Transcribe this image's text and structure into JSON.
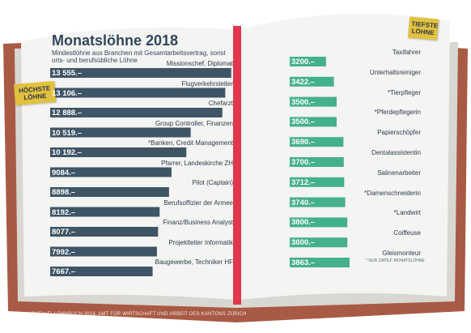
{
  "title": "Monatslöhne 2018",
  "subtitle": "Mindestlöhne aus Branchen mit Gesamtarbeitsvertrag, sonst orts- und berufsübliche Löhne",
  "tag_high": "HÖCHSTE LÖHNE",
  "tag_low": "TIEFSTE LÖHNE",
  "source": "QUELLE: LOHNBUCH 2018, AMT FÜR WIRTSCHAFT UND ARBEIT DES KANTONS ZÜRICH",
  "footnote": "* NUR ZWÖLF MONATSLÖHNE",
  "colors": {
    "book_cover": "#a85a45",
    "page": "#f4f4f2",
    "high_bar": "#3f5566",
    "low_bar": "#45b08c",
    "spine": "#e0364e",
    "tag": "#e2c13e"
  },
  "chart_data": [
    {
      "type": "bar",
      "group": "Höchste Löhne",
      "unit": "CHF",
      "categories": [
        "Missionschef, Diplomat",
        "Flugverkehrsleiter",
        "Chefarzt",
        "Group Controller, Finanzen",
        "*Banken, Credit Management",
        "Pfarrer, Landeskirche ZH",
        "Pilot (Captain)",
        "Berufsoffizier der Armee",
        "Finanz/Business Analyst",
        "Projektleiter Informatik",
        "Baugewerbe, Techniker HF"
      ],
      "values": [
        13555,
        13106,
        12888,
        10519,
        10192,
        9084,
        8898,
        8192,
        8077,
        7992,
        7667
      ],
      "value_labels": [
        "13 555.–",
        "13 106.–",
        "12 888.–",
        "10 519.–",
        "10 192.–",
        "9084.–",
        "8898.–",
        "8192.–",
        "8077.–",
        "7992.–",
        "7667.–"
      ]
    },
    {
      "type": "bar",
      "group": "Tiefste Löhne",
      "unit": "CHF",
      "categories": [
        "Taxifahrer",
        "Unterhaltsreiniger",
        "*Tierpfleger",
        "*Pferdepflegerin",
        "Papierschöpfer",
        "Dentalassistentin",
        "Salinenarbeiter",
        "*Damenschneiderin",
        "*Landwirt",
        "Coiffeuse",
        "Gleismonteur"
      ],
      "values": [
        3200,
        3422,
        3500,
        3500,
        3690,
        3700,
        3712,
        3740,
        3800,
        3800,
        3863
      ],
      "value_labels": [
        "3200.–",
        "3422.–",
        "3500.–",
        "3500.–",
        "3690.–",
        "3700.–",
        "3712.–",
        "3740.–",
        "3800.–",
        "3800.–",
        "3863.–"
      ]
    }
  ]
}
